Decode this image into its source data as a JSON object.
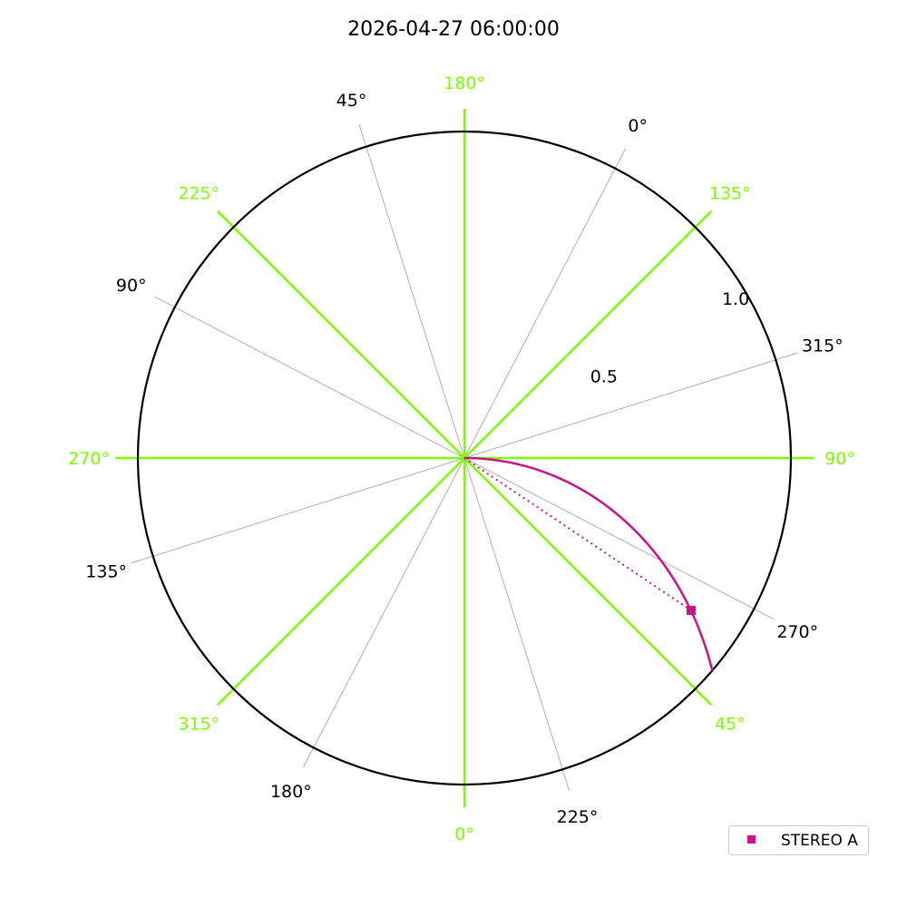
{
  "chart_data": {
    "type": "polar",
    "title": "2026-04-27 06:00:00",
    "rlim": [
      0,
      1.1
    ],
    "radial_ticks": [
      0.5,
      1.0
    ],
    "radial_tick_labels": [
      "0.5",
      "1.0"
    ],
    "primary_longitude_labels": [
      "0°",
      "45°",
      "90°",
      "135°",
      "180°",
      "225°",
      "270°",
      "315°"
    ],
    "primary_longitudes": [
      0,
      45,
      90,
      135,
      180,
      225,
      270,
      315
    ],
    "secondary_longitude_labels": [
      "0°",
      "45°",
      "90°",
      "135°",
      "180°",
      "225°",
      "270°",
      "315°"
    ],
    "secondary_longitudes": [
      0,
      45,
      90,
      135,
      180,
      225,
      270,
      315
    ],
    "secondary_offset_deg": -27.5,
    "colors": {
      "primary_grid": "#7CFC00",
      "secondary_grid": "#b0b0b0",
      "frame": "#000000",
      "stereo_a": "#C71585"
    },
    "series": [
      {
        "name": "STEREO A",
        "marker": "square",
        "longitude_deg": 56.1,
        "r": 0.92,
        "spiral": {
          "lon_at_sun_deg": 90.1,
          "deg_per_unit_r": -37,
          "r_end": 1.1
        }
      }
    ],
    "legend": {
      "placement": "lower-right",
      "entries": [
        "STEREO A"
      ]
    }
  }
}
